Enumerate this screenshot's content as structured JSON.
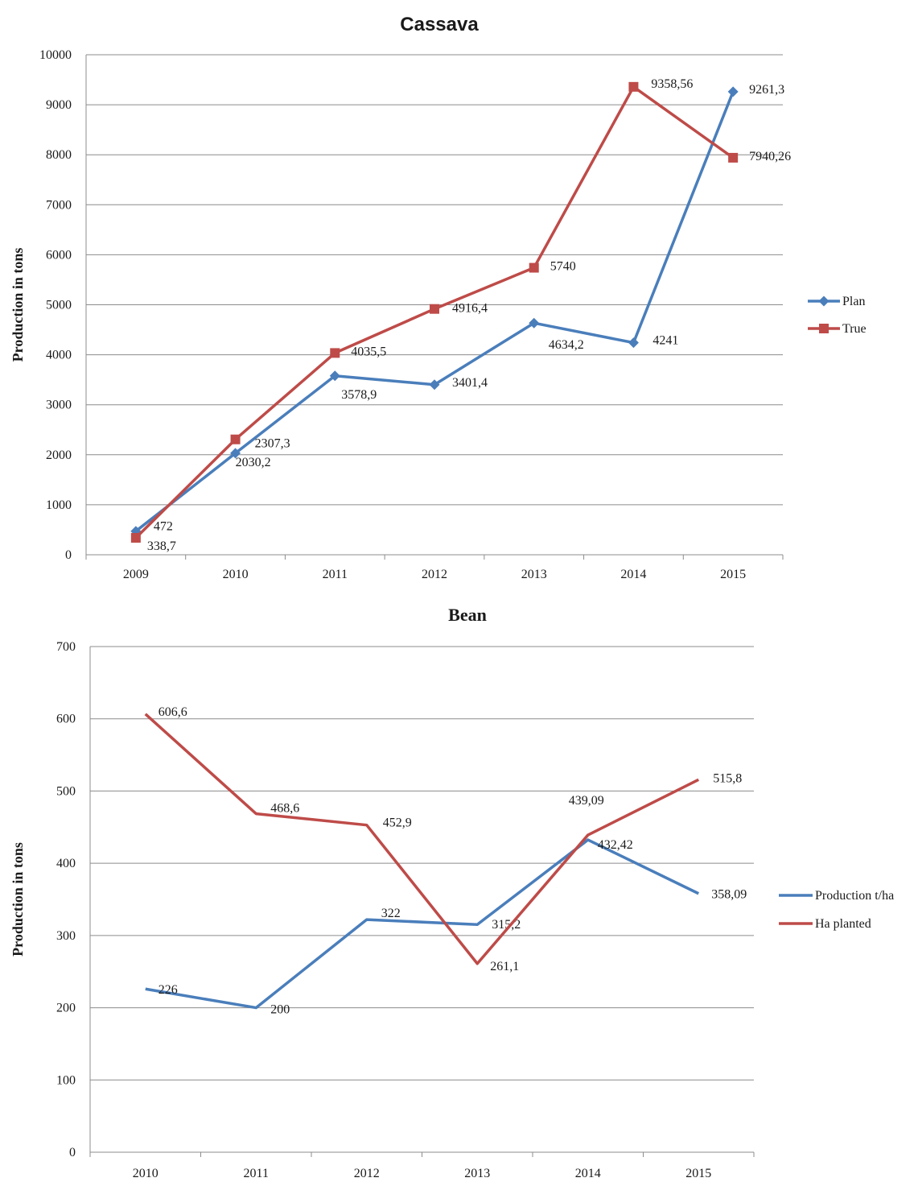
{
  "chart_data": [
    {
      "type": "line",
      "title": "Cassava",
      "ylabel": "Production in tons",
      "xlabel": "",
      "categories": [
        "2009",
        "2010",
        "2011",
        "2012",
        "2013",
        "2014",
        "2015"
      ],
      "ylim": [
        0,
        10000
      ],
      "yticks": [
        "0",
        "1000",
        "2000",
        "3000",
        "4000",
        "5000",
        "6000",
        "7000",
        "8000",
        "9000",
        "10000"
      ],
      "grid": true,
      "legend_position": "right",
      "series": [
        {
          "name": "Plan",
          "color": "#4a7ebb",
          "marker": "diamond",
          "values": [
            472,
            2030.2,
            3578.9,
            3401.4,
            4634.2,
            4241,
            9261.3
          ],
          "labels": [
            "472",
            "2030,2",
            "3578,9",
            "3401,4",
            "4634,2",
            "4241",
            "9261,3"
          ]
        },
        {
          "name": "True",
          "color": "#be4b48",
          "marker": "square",
          "values": [
            338.7,
            2307.3,
            4035.5,
            4916.4,
            5740,
            9358.56,
            7940.26
          ],
          "labels": [
            "338,7",
            "2307,3",
            "4035,5",
            "4916,4",
            "5740",
            "9358,56",
            "7940,26"
          ]
        }
      ]
    },
    {
      "type": "line",
      "title": "Bean",
      "ylabel": "Production in tons",
      "xlabel": "",
      "categories": [
        "2010",
        "2011",
        "2012",
        "2013",
        "2014",
        "2015"
      ],
      "ylim": [
        0,
        700
      ],
      "yticks": [
        "0",
        "100",
        "200",
        "300",
        "400",
        "500",
        "600",
        "700"
      ],
      "grid": true,
      "legend_position": "right",
      "series": [
        {
          "name": "Production t/ha",
          "color": "#4a7ebb",
          "marker": "none",
          "values": [
            226,
            200,
            322,
            315.2,
            432.42,
            358.09
          ],
          "labels": [
            "226",
            "200",
            "322",
            "315,2",
            "432,42",
            "358,09"
          ]
        },
        {
          "name": "Ha planted",
          "color": "#be4b48",
          "marker": "none",
          "values": [
            606.6,
            468.6,
            452.9,
            261.1,
            439.09,
            515.8
          ],
          "labels": [
            "606,6",
            "468,6",
            "452,9",
            "261,1",
            "439,09",
            "515,8"
          ]
        }
      ]
    }
  ]
}
